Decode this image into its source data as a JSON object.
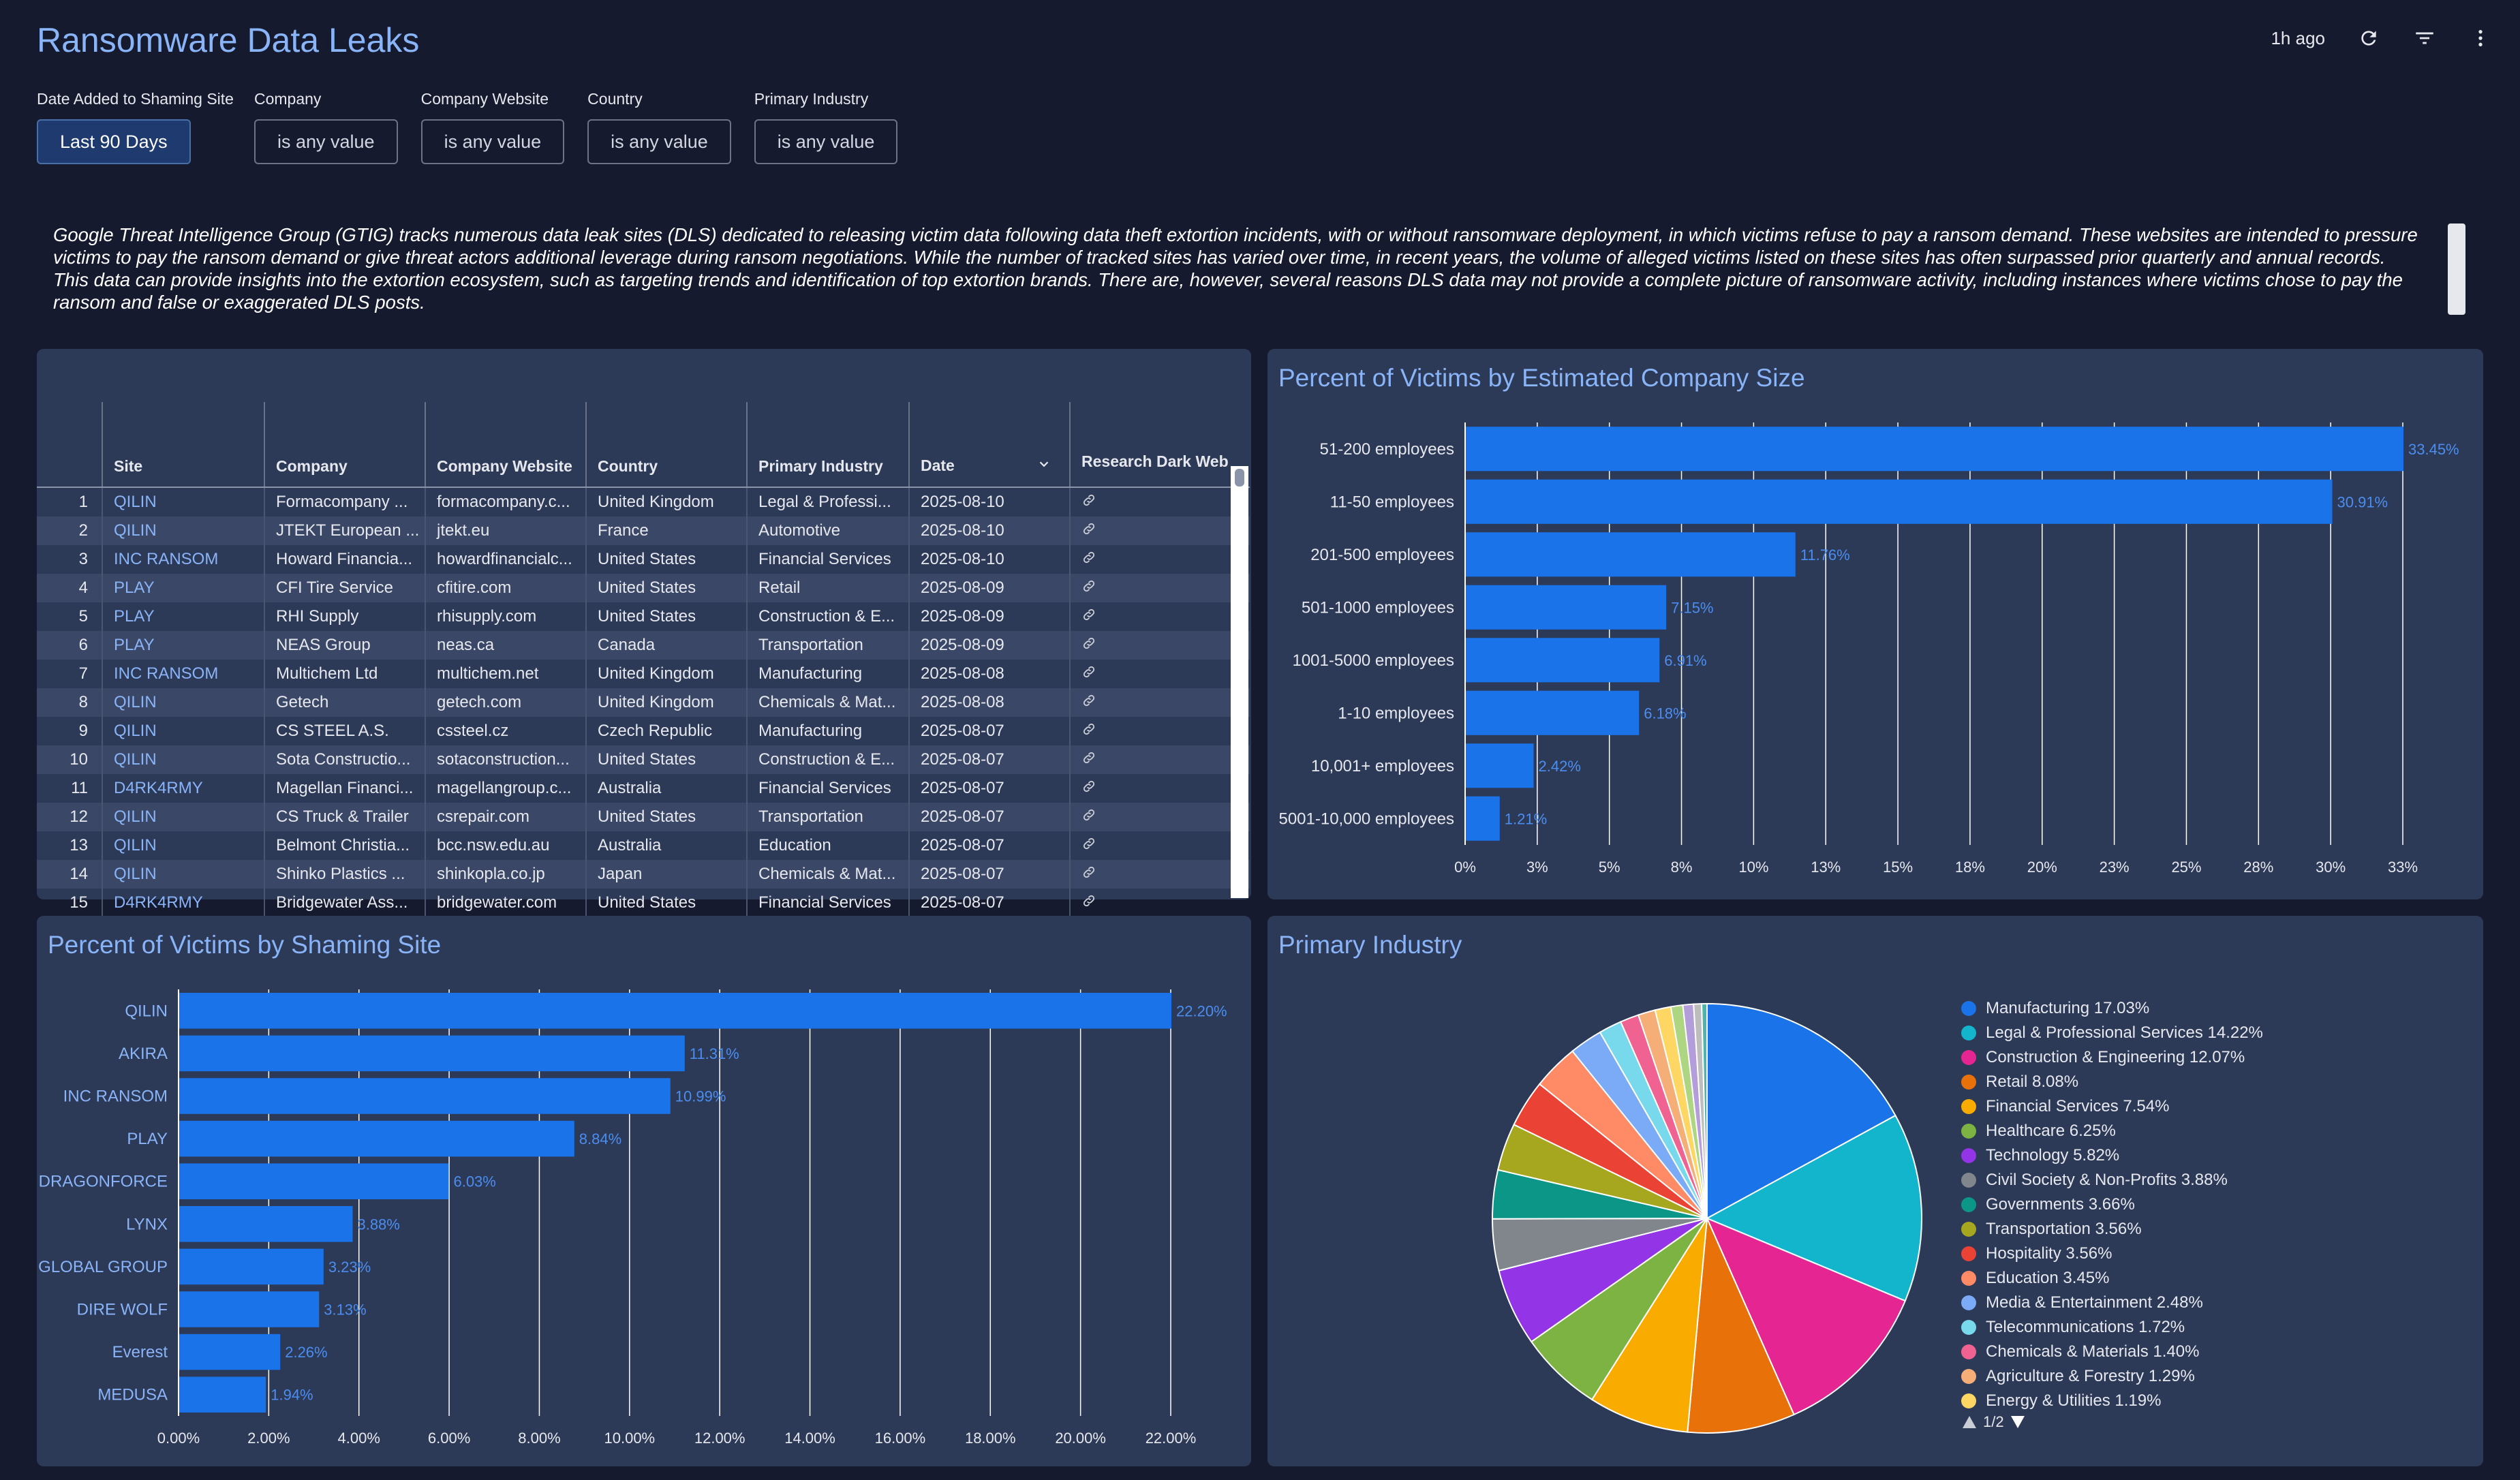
{
  "header": {
    "title": "Ransomware Data Leaks",
    "last_updated": "1h ago",
    "icons": [
      "refresh-icon",
      "filter-icon",
      "more-vert-icon"
    ]
  },
  "filters": [
    {
      "label": "Date Added to Shaming Site",
      "value": "Last 90 Days",
      "active": true
    },
    {
      "label": "Company",
      "value": "is any value",
      "active": false
    },
    {
      "label": "Company Website",
      "value": "is any value",
      "active": false
    },
    {
      "label": "Country",
      "value": "is any value",
      "active": false
    },
    {
      "label": "Primary Industry",
      "value": "is any value",
      "active": false
    }
  ],
  "description": "Google Threat Intelligence Group (GTIG) tracks numerous data leak sites (DLS) dedicated to releasing victim data following data theft extortion incidents, with or without ransomware deployment, in which victims refuse to pay a ransom demand. These websites are intended to pressure victims to pay the ransom demand or give threat actors additional leverage during ransom negotiations. While the number of tracked sites has varied over time, in recent years, the volume of alleged victims listed on these sites has often surpassed prior quarterly and annual records. This data can provide insights into the extortion ecosystem, such as targeting trends and identification of top extortion brands. There are, however, several reasons DLS data may not provide a complete picture of ransomware activity, including instances where victims chose to pay the ransom and false or exaggerated DLS posts.",
  "table": {
    "columns": [
      "",
      "Site",
      "Company",
      "Company Website",
      "Country",
      "Primary Industry",
      "Date",
      "Research Dark Web"
    ],
    "rows": [
      [
        "1",
        "QILIN",
        "Formacompany ...",
        "formacompany.c...",
        "United Kingdom",
        "Legal & Professi...",
        "2025-08-10"
      ],
      [
        "2",
        "QILIN",
        "JTEKT European ...",
        "jtekt.eu",
        "France",
        "Automotive",
        "2025-08-10"
      ],
      [
        "3",
        "INC RANSOM",
        "Howard Financia...",
        "howardfinancialc...",
        "United States",
        "Financial Services",
        "2025-08-10"
      ],
      [
        "4",
        "PLAY",
        "CFI Tire Service",
        "cfitire.com",
        "United States",
        "Retail",
        "2025-08-09"
      ],
      [
        "5",
        "PLAY",
        "RHI Supply",
        "rhisupply.com",
        "United States",
        "Construction & E...",
        "2025-08-09"
      ],
      [
        "6",
        "PLAY",
        "NEAS Group",
        "neas.ca",
        "Canada",
        "Transportation",
        "2025-08-09"
      ],
      [
        "7",
        "INC RANSOM",
        "Multichem Ltd",
        "multichem.net",
        "United Kingdom",
        "Manufacturing",
        "2025-08-08"
      ],
      [
        "8",
        "QILIN",
        "Getech",
        "getech.com",
        "United Kingdom",
        "Chemicals & Mat...",
        "2025-08-08"
      ],
      [
        "9",
        "QILIN",
        "CS STEEL A.S.",
        "cssteel.cz",
        "Czech Republic",
        "Manufacturing",
        "2025-08-07"
      ],
      [
        "10",
        "QILIN",
        "Sota Constructio...",
        "sotaconstruction...",
        "United States",
        "Construction & E...",
        "2025-08-07"
      ],
      [
        "11",
        "D4RK4RMY",
        "Magellan Financi...",
        "magellangroup.c...",
        "Australia",
        "Financial Services",
        "2025-08-07"
      ],
      [
        "12",
        "QILIN",
        "CS Truck & Trailer",
        "csrepair.com",
        "United States",
        "Transportation",
        "2025-08-07"
      ],
      [
        "13",
        "QILIN",
        "Belmont Christia...",
        "bcc.nsw.edu.au",
        "Australia",
        "Education",
        "2025-08-07"
      ],
      [
        "14",
        "QILIN",
        "Shinko Plastics ...",
        "shinkopla.co.jp",
        "Japan",
        "Chemicals & Mat...",
        "2025-08-07"
      ],
      [
        "15",
        "D4RK4RMY",
        "Bridgewater Ass...",
        "bridgewater.com",
        "United States",
        "Financial Services",
        "2025-08-07"
      ]
    ]
  },
  "chart_data": [
    {
      "type": "bar",
      "orientation": "horizontal",
      "title": "Percent of Victims by Estimated Company Size",
      "categories": [
        "51-200 employees",
        "11-50 employees",
        "201-500 employees",
        "501-1000 employees",
        "1001-5000 employees",
        "1-10 employees",
        "10,001+ employees",
        "5001-10,000 employees"
      ],
      "values": [
        33.45,
        30.91,
        11.76,
        7.15,
        6.91,
        6.18,
        2.42,
        1.21
      ],
      "value_labels": [
        "33.45%",
        "30.91%",
        "11.76%",
        "7.15%",
        "6.91%",
        "6.18%",
        "2.42%",
        "1.21%"
      ],
      "xticks": [
        "0%",
        "3%",
        "5%",
        "8%",
        "10%",
        "13%",
        "15%",
        "18%",
        "20%",
        "23%",
        "25%",
        "28%",
        "30%",
        "33%"
      ],
      "xlim": [
        0,
        33.45
      ],
      "grid": true,
      "color": "#1a73e8"
    },
    {
      "type": "bar",
      "orientation": "horizontal",
      "title": "Percent of Victims by Shaming Site",
      "categories": [
        "QILIN",
        "AKIRA",
        "INC RANSOM",
        "PLAY",
        "DRAGONFORCE",
        "LYNX",
        "GLOBAL GROUP",
        "DIRE WOLF",
        "Everest",
        "MEDUSA"
      ],
      "values": [
        22.2,
        11.31,
        10.99,
        8.84,
        6.03,
        3.88,
        3.23,
        3.13,
        2.26,
        1.94
      ],
      "value_labels": [
        "22.20%",
        "11.31%",
        "10.99%",
        "8.84%",
        "6.03%",
        "3.88%",
        "3.23%",
        "3.13%",
        "2.26%",
        "1.94%"
      ],
      "xticks": [
        "0.00%",
        "2.00%",
        "4.00%",
        "6.00%",
        "8.00%",
        "10.00%",
        "12.00%",
        "14.00%",
        "16.00%",
        "18.00%",
        "20.00%",
        "22.00%"
      ],
      "xlim": [
        0,
        22.2
      ],
      "grid": true,
      "color": "#1a73e8"
    },
    {
      "type": "pie",
      "title": "Primary Industry",
      "slices": [
        {
          "label": "Manufacturing",
          "value": 17.03,
          "color": "#1a73e8"
        },
        {
          "label": "Legal & Professional Services",
          "value": 14.22,
          "color": "#12b5cb"
        },
        {
          "label": "Construction & Engineering",
          "value": 12.07,
          "color": "#e52592"
        },
        {
          "label": "Retail",
          "value": 8.08,
          "color": "#e8710a"
        },
        {
          "label": "Financial Services",
          "value": 7.54,
          "color": "#f9ab00"
        },
        {
          "label": "Healthcare",
          "value": 6.25,
          "color": "#7cb342"
        },
        {
          "label": "Technology",
          "value": 5.82,
          "color": "#9334e6"
        },
        {
          "label": "Civil Society & Non-Profits",
          "value": 3.88,
          "color": "#80868b"
        },
        {
          "label": "Governments",
          "value": 3.66,
          "color": "#0b9688"
        },
        {
          "label": "Transportation",
          "value": 3.56,
          "color": "#a6a71e"
        },
        {
          "label": "Hospitality",
          "value": 3.56,
          "color": "#ea4335"
        },
        {
          "label": "Education",
          "value": 3.45,
          "color": "#ff8a65"
        },
        {
          "label": "Media & Entertainment",
          "value": 2.48,
          "color": "#7baaf7"
        },
        {
          "label": "Telecommunications",
          "value": 1.72,
          "color": "#78d9ec"
        },
        {
          "label": "Chemicals & Materials",
          "value": 1.4,
          "color": "#f06292"
        },
        {
          "label": "Agriculture & Forestry",
          "value": 1.29,
          "color": "#f6ae79"
        },
        {
          "label": "Energy & Utilities",
          "value": 1.19,
          "color": "#fdd663"
        },
        {
          "label": "",
          "value": 0.9,
          "color": "#aed581"
        },
        {
          "label": "",
          "value": 0.8,
          "color": "#b39ddb"
        },
        {
          "label": "",
          "value": 0.6,
          "color": "#bdbdbd"
        },
        {
          "label": "",
          "value": 0.4,
          "color": "#4db6ac"
        }
      ],
      "legend_entries": [
        "Manufacturing 17.03%",
        "Legal & Professional Services 14.22%",
        "Construction & Engineering 12.07%",
        "Retail 8.08%",
        "Financial Services 7.54%",
        "Healthcare 6.25%",
        "Technology 5.82%",
        "Civil Society & Non-Profits 3.88%",
        "Governments 3.66%",
        "Transportation 3.56%",
        "Hospitality 3.56%",
        "Education 3.45%",
        "Media & Entertainment 2.48%",
        "Telecommunications 1.72%",
        "Chemicals & Materials 1.40%",
        "Agriculture & Forestry 1.29%",
        "Energy & Utilities 1.19%"
      ],
      "legend_page": "1/2",
      "legend_position": "right"
    }
  ]
}
